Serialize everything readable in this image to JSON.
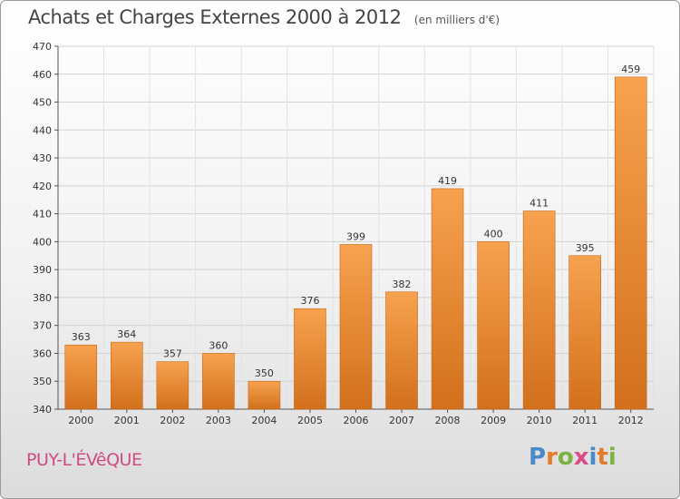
{
  "chart_data": {
    "type": "bar",
    "title": "Achats et Charges Externes 2000 à 2012",
    "subtitle": "(en milliers d'€)",
    "categories": [
      "2000",
      "2001",
      "2002",
      "2003",
      "2004",
      "2005",
      "2006",
      "2007",
      "2008",
      "2009",
      "2010",
      "2011",
      "2012"
    ],
    "values": [
      363,
      364,
      357,
      360,
      350,
      376,
      399,
      382,
      419,
      400,
      411,
      395,
      459
    ],
    "ylim": [
      340,
      470
    ],
    "yticks": [
      340,
      350,
      360,
      370,
      380,
      390,
      400,
      410,
      420,
      430,
      440,
      450,
      460,
      470
    ],
    "grid": true,
    "bar_color_top": "#f7a24f",
    "bar_color_bottom": "#d2701c"
  },
  "place": "PUY-L'ÉVêQUE",
  "brand": {
    "letters": [
      "P",
      "r",
      "o",
      "x",
      "i",
      "t",
      "i"
    ],
    "colors": [
      "#4a8ac9",
      "#e27c2a",
      "#7cb342",
      "#d94d8a",
      "#4a8ac9",
      "#e27c2a",
      "#7cb342"
    ]
  }
}
